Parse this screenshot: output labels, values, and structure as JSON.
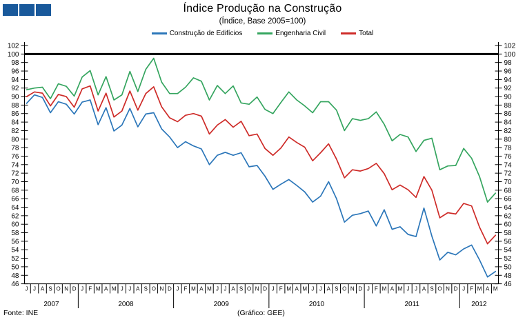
{
  "logo": {
    "square_count": 3,
    "color": "#19599B"
  },
  "header": {
    "title": "Índice Produção na Construção",
    "subtitle": "(Índice, Base 2005=100)"
  },
  "legend": [
    {
      "label": "Construção de Edifícios",
      "color": "#2B76B9"
    },
    {
      "label": "Engenharia Civil",
      "color": "#35A55F"
    },
    {
      "label": "Total",
      "color": "#CE2B28"
    }
  ],
  "footer": {
    "source": "Fonte: INE",
    "credit": "(Gráfico: GEE)"
  },
  "chart_data": {
    "type": "line",
    "title": "Índice Produção na Construção",
    "subtitle": "(Índice, Base 2005=100)",
    "ylim": [
      46,
      102
    ],
    "ytick_step": 2,
    "grid": false,
    "baseline": {
      "value": 100,
      "color": "#000000"
    },
    "axis_color": "#000000",
    "x_months": [
      "J",
      "J",
      "A",
      "S",
      "O",
      "N",
      "D",
      "J",
      "F",
      "M",
      "A",
      "M",
      "J",
      "J",
      "A",
      "S",
      "O",
      "N",
      "D",
      "J",
      "F",
      "M",
      "A",
      "M",
      "J",
      "J",
      "A",
      "S",
      "O",
      "N",
      "D",
      "J",
      "F",
      "M",
      "A",
      "M",
      "J",
      "J",
      "A",
      "S",
      "O",
      "N",
      "D",
      "J",
      "F",
      "M",
      "A",
      "M",
      "J",
      "J",
      "A",
      "S",
      "O",
      "N",
      "D",
      "J",
      "F",
      "M",
      "A",
      "M"
    ],
    "years": [
      {
        "label": "2007",
        "months": 7
      },
      {
        "label": "2008",
        "months": 12
      },
      {
        "label": "2009",
        "months": 12
      },
      {
        "label": "2010",
        "months": 12
      },
      {
        "label": "2011",
        "months": 12
      },
      {
        "label": "2012",
        "months": 5
      }
    ],
    "series": [
      {
        "name": "Construção de Edifícios",
        "color": "#2B76B9",
        "values": [
          88.4,
          90.4,
          89.8,
          86.2,
          88.8,
          88.2,
          85.9,
          88.7,
          89.2,
          83.4,
          87.4,
          81.9,
          83.3,
          87.2,
          82.9,
          85.9,
          86.2,
          82.4,
          80.5,
          78.0,
          79.4,
          78.4,
          77.7,
          74.0,
          76.2,
          76.9,
          76.2,
          76.8,
          73.5,
          73.8,
          71.3,
          68.2,
          69.4,
          70.5,
          69.1,
          67.6,
          65.2,
          66.6,
          70.0,
          66.0,
          60.5,
          62.1,
          62.5,
          63.1,
          59.6,
          63.4,
          58.8,
          59.4,
          57.6,
          57.1,
          63.8,
          57.2,
          51.6,
          53.4,
          52.8,
          54.2,
          55.1,
          51.6,
          47.6,
          48.9
        ]
      },
      {
        "name": "Engenharia Civil",
        "color": "#35A55F",
        "values": [
          91.6,
          92.0,
          92.2,
          89.5,
          93.0,
          92.4,
          90.1,
          94.6,
          96.1,
          90.4,
          94.7,
          89.2,
          90.4,
          95.9,
          91.2,
          96.4,
          99.0,
          93.4,
          90.7,
          90.7,
          92.2,
          94.4,
          93.6,
          89.2,
          92.6,
          90.7,
          92.5,
          88.5,
          88.2,
          89.9,
          87.0,
          86.0,
          88.6,
          91.1,
          89.2,
          87.8,
          86.2,
          88.8,
          88.8,
          86.8,
          82.0,
          84.8,
          84.4,
          84.8,
          86.4,
          83.5,
          79.6,
          81.1,
          80.5,
          77.1,
          79.7,
          80.2,
          72.8,
          73.7,
          73.8,
          77.8,
          75.5,
          71.2,
          65.2,
          67.3
        ]
      },
      {
        "name": "Total",
        "color": "#CE2B28",
        "values": [
          90.0,
          91.1,
          90.8,
          87.8,
          90.5,
          90.0,
          87.5,
          91.8,
          92.5,
          86.6,
          90.8,
          85.2,
          86.6,
          91.3,
          86.8,
          90.7,
          92.3,
          87.6,
          85.0,
          84.1,
          85.6,
          86.0,
          85.4,
          81.2,
          83.3,
          84.6,
          82.8,
          84.2,
          80.8,
          81.2,
          77.8,
          76.2,
          77.9,
          80.5,
          79.2,
          78.1,
          74.9,
          76.8,
          78.9,
          75.3,
          70.9,
          72.8,
          72.5,
          73.1,
          74.3,
          71.9,
          68.1,
          69.2,
          68.1,
          66.3,
          71.2,
          68.0,
          61.5,
          62.7,
          62.4,
          64.9,
          64.3,
          59.3,
          55.4,
          57.4
        ]
      }
    ]
  }
}
